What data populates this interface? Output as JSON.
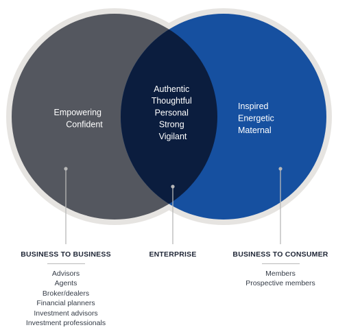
{
  "venn": {
    "left": {
      "traits": [
        "Empowering",
        "Confident"
      ],
      "color": "#54575f"
    },
    "overlap": {
      "traits": [
        "Authentic",
        "Thoughtful",
        "Personal",
        "Strong",
        "Vigilant"
      ],
      "color": "#0b1d3e"
    },
    "right": {
      "traits": [
        "Inspired",
        "Energetic",
        "Maternal"
      ],
      "color": "#1650a0"
    },
    "ring_color": "#e6e4e1",
    "pointer_color": "#b8b8b8"
  },
  "segments": {
    "b2b": {
      "heading": "BUSINESS TO BUSINESS",
      "items": [
        "Advisors",
        "Agents",
        "Broker/dealers",
        "Financial planners",
        "Investment advisors",
        "Investment professionals"
      ]
    },
    "enterprise": {
      "heading": "ENTERPRISE",
      "items": []
    },
    "b2c": {
      "heading": "BUSINESS TO CONSUMER",
      "items": [
        "Members",
        "Prospective members"
      ]
    }
  }
}
